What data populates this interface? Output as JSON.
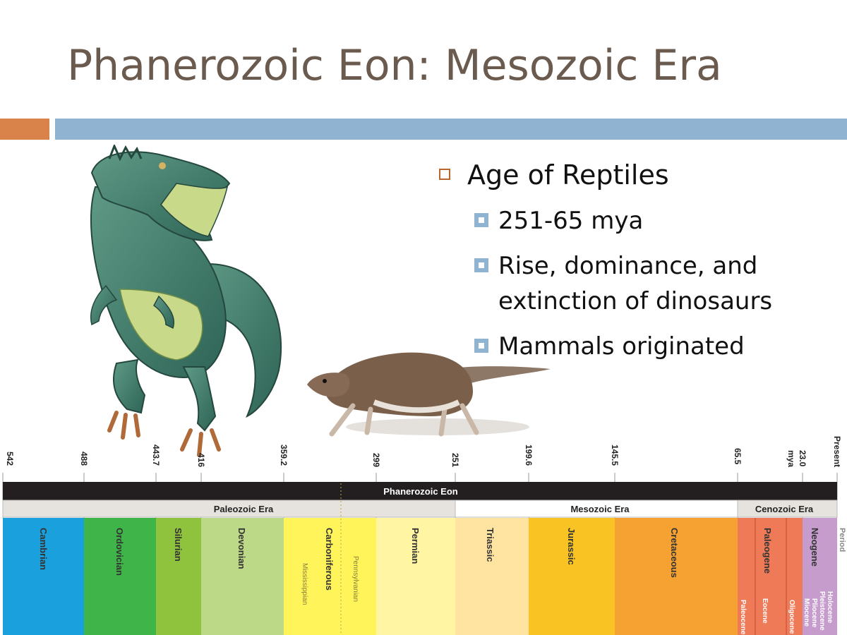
{
  "slide": {
    "title": "Phanerozoic Eon: Mesozoic Era",
    "accent_orange": "#d9824a",
    "accent_blue": "#8fb3d0",
    "title_color": "#6b5a4e"
  },
  "bullets": {
    "main": "Age of Reptiles",
    "sub": [
      "251-65 mya",
      "Rise, dominance, and extinction of dinosaurs",
      "Mammals originated"
    ],
    "sub_lines": [
      [
        "251-65 mya"
      ],
      [
        "Rise, dominance, and",
        "extinction of dinosaurs"
      ],
      [
        "Mammals originated"
      ]
    ]
  },
  "images": {
    "dinosaur": "dinosaur-illustration",
    "mammal": "early-mammal-illustration"
  },
  "timeline": {
    "eon": "Phanerozoic Eon",
    "ticks": [
      "542",
      "488",
      "443.7",
      "416",
      "359.2",
      "299",
      "251",
      "199.6",
      "145.5",
      "65.5",
      "mya",
      "23.0",
      "Present"
    ],
    "eras": [
      "Paleozoic Era",
      "Mesozoic Era",
      "Cenozoic Era"
    ],
    "periods": [
      {
        "name": "Cambrian",
        "color": "#1aa0dc"
      },
      {
        "name": "Ordovician",
        "color": "#3fb549"
      },
      {
        "name": "Silurian",
        "color": "#8fc33e"
      },
      {
        "name": "Devonian",
        "color": "#bbd987"
      },
      {
        "name": "Carboniferous",
        "color": "#fff45a"
      },
      {
        "name": "Permian",
        "color": "#fff5a3"
      },
      {
        "name": "Triassic",
        "color": "#ffe3a1"
      },
      {
        "name": "Jurassic",
        "color": "#f9c423"
      },
      {
        "name": "Cretaceous",
        "color": "#f5a233"
      },
      {
        "name": "Paleogene",
        "color": "#ef7a58"
      },
      {
        "name": "Neogene",
        "color": "#c69ccd"
      }
    ],
    "subperiods": [
      "Mississippian",
      "Pennsylvanian"
    ],
    "epochs": [
      "Paleocene",
      "Eocene",
      "Oligocene",
      "Miocene",
      "Pliocene",
      "Pleistocene",
      "Holocene"
    ],
    "quaternary_partial": "Period"
  }
}
